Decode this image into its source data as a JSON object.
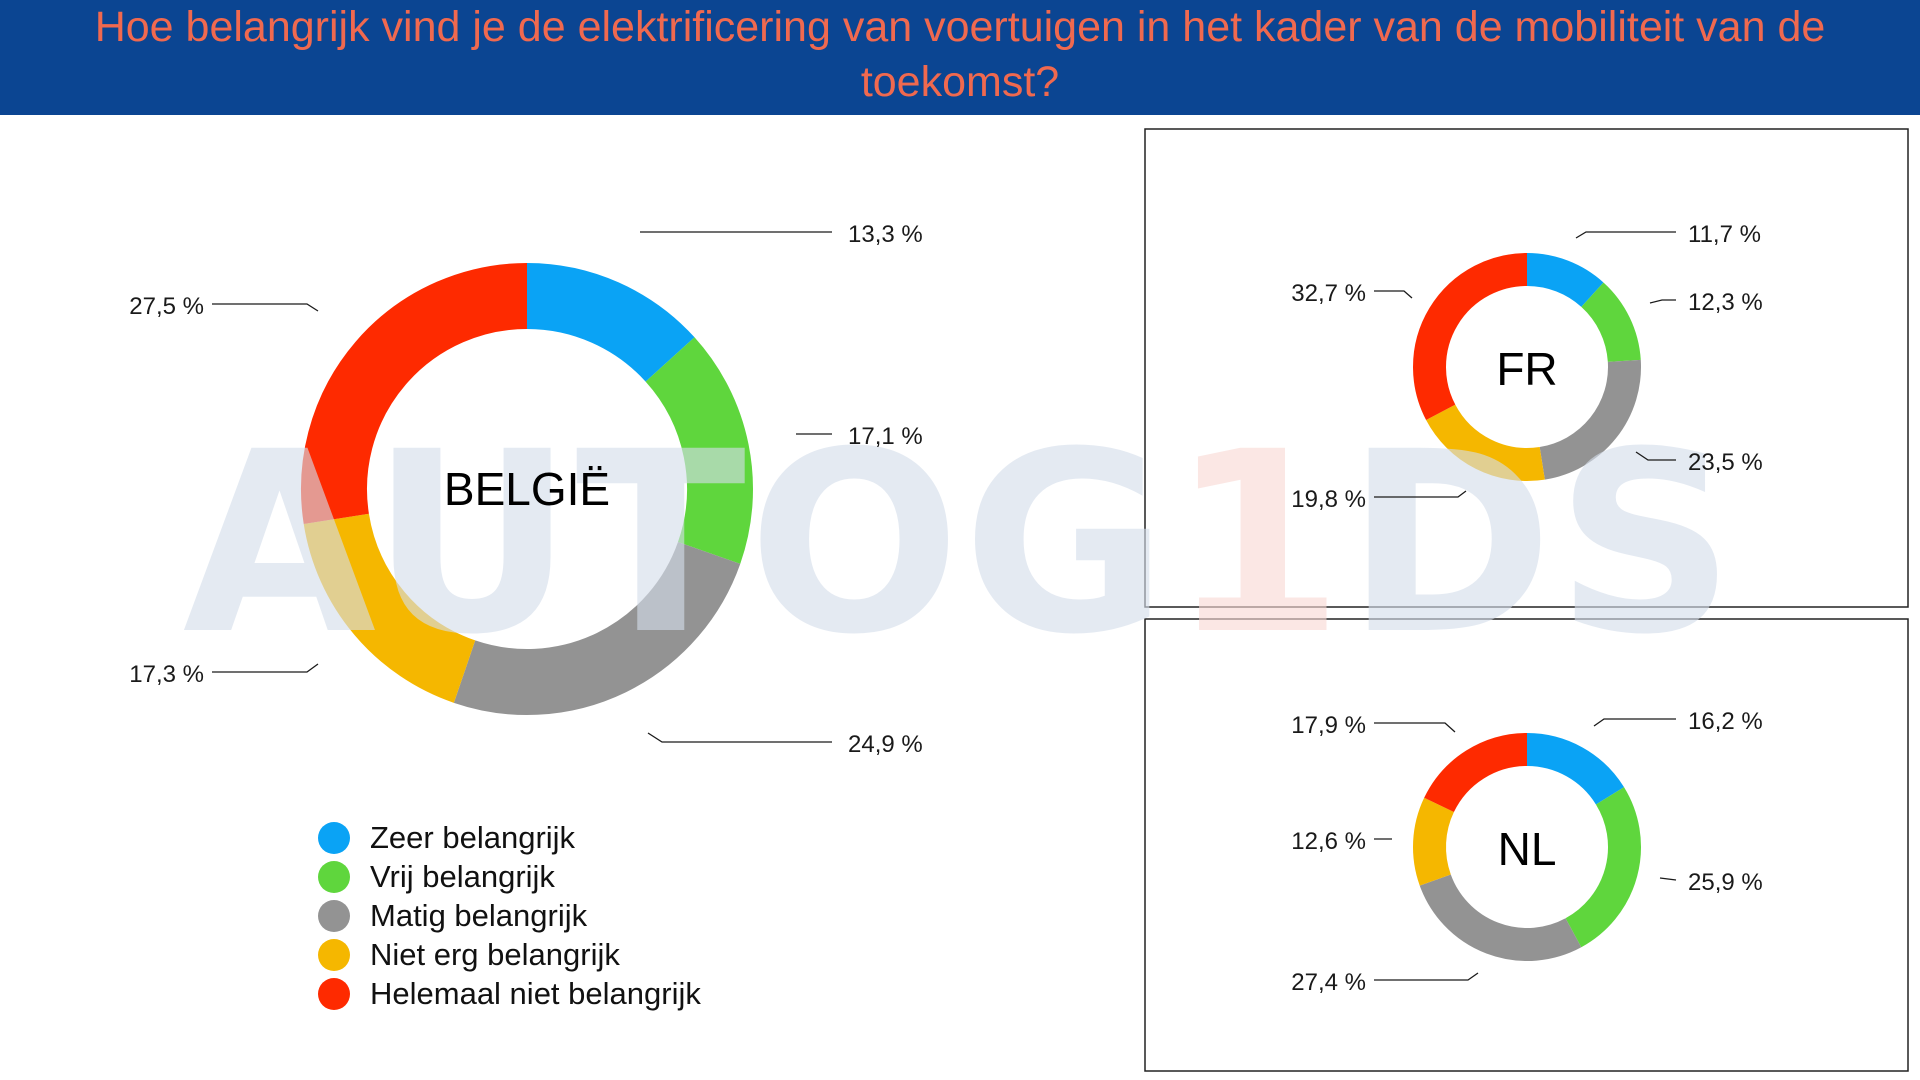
{
  "title": "Hoe belangrijk vind je de elektrificering van voertuigen in het kader van de mobiliteit van de toekomst?",
  "colors": {
    "header_bg": "#0b4592",
    "title": "#f0694f",
    "watermark_main": "#d5deeb",
    "watermark_accent": "#f9d9d4"
  },
  "watermark": {
    "left": "AUTOG",
    "accent": "1",
    "right": "DS"
  },
  "legend": [
    {
      "label": "Zeer belangrijk",
      "color": "#0aa3f5"
    },
    {
      "label": "Vrij belangrijk",
      "color": "#5fd63d"
    },
    {
      "label": "Matig belangrijk",
      "color": "#939393"
    },
    {
      "label": "Niet erg belangrijk",
      "color": "#f5b700"
    },
    {
      "label": "Helemaal niet belangrijk",
      "color": "#fe2a00"
    }
  ],
  "chart_data": [
    {
      "type": "pie",
      "label": "BELGIË",
      "categories": [
        "Zeer belangrijk",
        "Vrij belangrijk",
        "Matig belangrijk",
        "Niet erg belangrijk",
        "Helemaal niet belangrijk"
      ],
      "values": [
        13.3,
        17.1,
        24.9,
        17.3,
        27.5
      ],
      "value_labels": [
        "13,3 %",
        "17,1 %",
        "24,9 %",
        "17,3 %",
        "27,5 %"
      ]
    },
    {
      "type": "pie",
      "label": "FR",
      "categories": [
        "Zeer belangrijk",
        "Vrij belangrijk",
        "Matig belangrijk",
        "Niet erg belangrijk",
        "Helemaal niet belangrijk"
      ],
      "values": [
        11.7,
        12.3,
        23.5,
        19.8,
        32.7
      ],
      "value_labels": [
        "11,7 %",
        "12,3 %",
        "23,5 %",
        "19,8 %",
        "32,7 %"
      ]
    },
    {
      "type": "pie",
      "label": "NL",
      "categories": [
        "Zeer belangrijk",
        "Vrij belangrijk",
        "Matig belangrijk",
        "Niet erg belangrijk",
        "Helemaal niet belangrijk"
      ],
      "values": [
        16.2,
        25.9,
        27.4,
        12.6,
        17.9
      ],
      "value_labels": [
        "16,2 %",
        "25,9 %",
        "27,4 %",
        "12,6 %",
        "17,9 %"
      ]
    }
  ]
}
